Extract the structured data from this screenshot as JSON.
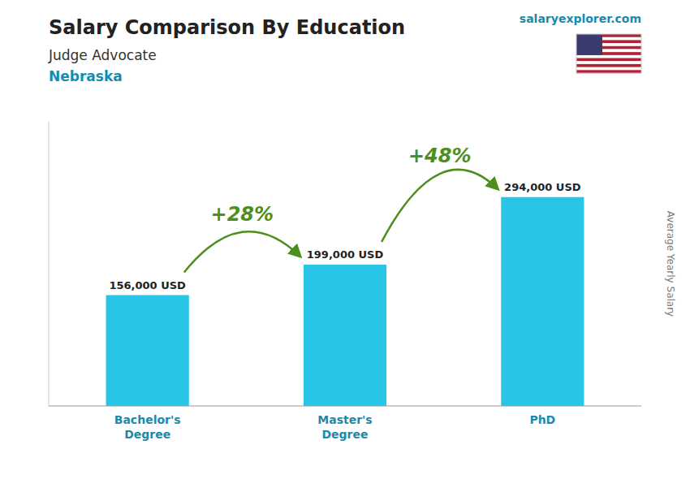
{
  "chart_data": {
    "type": "bar",
    "title": "Salary Comparison By Education",
    "subtitle": [
      "Judge Advocate",
      "Nebraska"
    ],
    "y_label": "Average Yearly Salary",
    "annotations": [
      "+28%",
      "+48%",
      "salaryexplorer.com"
    ],
    "categories": [
      "Bachelor's\nDegree",
      "Master's\nDegree",
      "PhD"
    ],
    "values": [
      156000,
      199000,
      294000
    ],
    "value_labels": [
      "156,000 USD",
      "199,000 USD",
      "294,000 USD"
    ],
    "data_labels": true,
    "color": "#29c5e6",
    "ylim": [
      0,
      400000
    ],
    "tick_labels": "x",
    "grid": false
  }
}
